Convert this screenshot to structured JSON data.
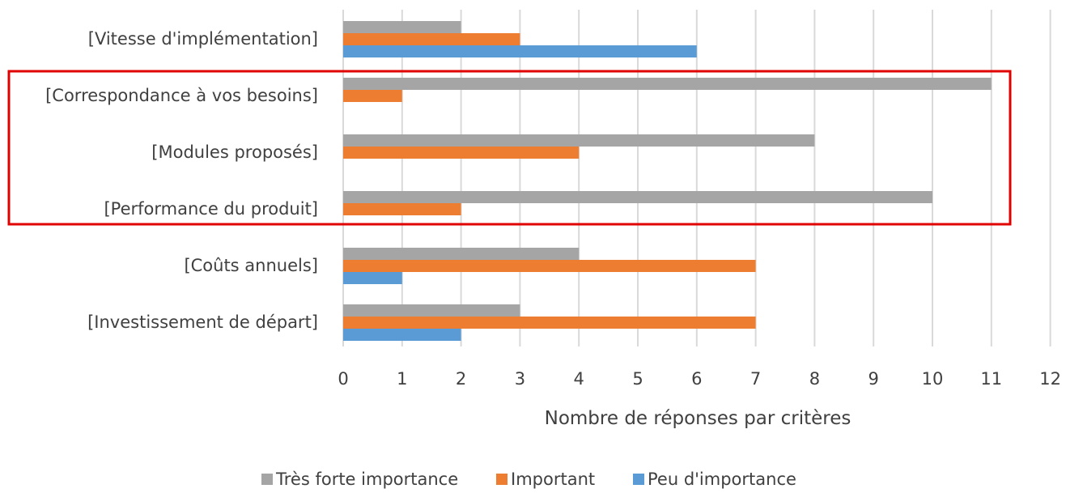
{
  "chart_data": {
    "type": "bar",
    "orientation": "horizontal",
    "categories": [
      "[Vitesse d'implémentation]",
      "[Correspondance à vos besoins]",
      "[Modules proposés]",
      "[Performance du produit]",
      "[Coûts annuels]",
      "[Investissement de départ]"
    ],
    "series": [
      {
        "name": "Très forte importance",
        "color": "#a5a5a5",
        "values": [
          2,
          11,
          8,
          10,
          4,
          3
        ]
      },
      {
        "name": "Important",
        "color": "#ed7d31",
        "values": [
          3,
          1,
          4,
          2,
          7,
          7
        ]
      },
      {
        "name": "Peu d'importance",
        "color": "#5b9bd5",
        "values": [
          6,
          0,
          0,
          0,
          1,
          2
        ]
      }
    ],
    "xticks": [
      "0",
      "1",
      "2",
      "3",
      "4",
      "5",
      "6",
      "7",
      "8",
      "9",
      "10",
      "11",
      "12"
    ],
    "xlim": [
      0,
      12
    ],
    "xlabel": "Nombre de réponses par critères",
    "grid": "vertical",
    "legend": "bottom",
    "highlight": {
      "color": "#e00000",
      "categories": [
        "[Correspondance à vos besoins]",
        "[Modules proposés]",
        "[Performance du produit]"
      ]
    }
  }
}
